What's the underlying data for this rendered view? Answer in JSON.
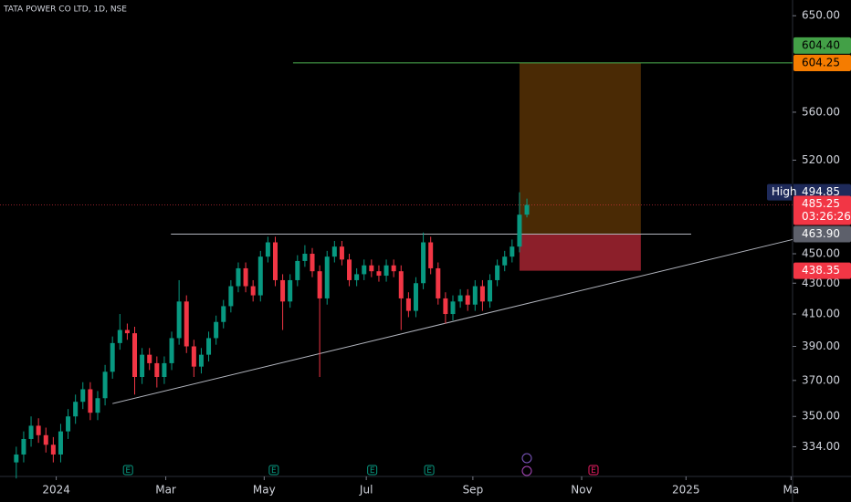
{
  "chart_data": {
    "type": "candlestick",
    "title": "TATA POWER CO LTD, 1D, NSE",
    "log_scale": true,
    "up_color": "#089981",
    "down_color": "#f23645",
    "series": {
      "open": [
        326,
        330,
        338,
        345,
        340,
        335,
        330,
        342,
        350,
        358,
        365,
        352,
        360,
        375,
        392,
        400,
        398,
        372,
        385,
        380,
        372,
        380,
        395,
        418,
        390,
        378,
        385,
        395,
        405,
        415,
        428,
        440,
        428,
        422,
        448,
        458,
        432,
        418,
        432,
        445,
        450,
        438,
        420,
        448,
        455,
        446,
        432,
        436,
        442,
        438,
        435,
        442,
        438,
        420,
        412,
        430,
        458,
        440,
        420,
        410,
        418,
        422,
        416,
        428,
        418,
        432,
        442,
        448,
        455,
        478
      ],
      "high": [
        334,
        342,
        350,
        349,
        344,
        339,
        346,
        354,
        362,
        369,
        369,
        364,
        379,
        396,
        410,
        404,
        402,
        389,
        389,
        384,
        384,
        399,
        432,
        422,
        394,
        389,
        399,
        409,
        419,
        432,
        444,
        444,
        432,
        452,
        462,
        462,
        436,
        436,
        449,
        456,
        454,
        442,
        452,
        459,
        459,
        450,
        440,
        446,
        446,
        442,
        446,
        446,
        442,
        424,
        434,
        465,
        462,
        444,
        424,
        422,
        426,
        426,
        432,
        432,
        436,
        446,
        452,
        460,
        494.85,
        490
      ],
      "low": [
        318,
        326,
        334,
        336,
        331,
        326,
        326,
        338,
        346,
        354,
        348,
        348,
        356,
        371,
        388,
        394,
        362,
        368,
        376,
        366,
        368,
        376,
        391,
        386,
        372,
        374,
        381,
        391,
        401,
        411,
        424,
        424,
        418,
        418,
        444,
        428,
        400,
        414,
        428,
        441,
        434,
        372,
        416,
        444,
        442,
        428,
        428,
        432,
        434,
        431,
        431,
        434,
        400,
        408,
        408,
        426,
        436,
        416,
        404,
        406,
        414,
        412,
        412,
        412,
        414,
        428,
        438,
        444,
        451,
        476
      ],
      "close": [
        330,
        338,
        345,
        340,
        335,
        330,
        342,
        350,
        358,
        365,
        352,
        360,
        375,
        392,
        400,
        398,
        372,
        385,
        380,
        372,
        380,
        395,
        418,
        390,
        378,
        385,
        395,
        405,
        415,
        428,
        440,
        428,
        422,
        448,
        458,
        432,
        418,
        432,
        445,
        450,
        438,
        420,
        448,
        455,
        446,
        432,
        436,
        442,
        438,
        435,
        442,
        438,
        420,
        412,
        430,
        458,
        440,
        420,
        410,
        418,
        422,
        416,
        428,
        418,
        432,
        442,
        448,
        455,
        478,
        485.25
      ]
    },
    "ylim": [
      319,
      666
    ],
    "yticks": [
      {
        "value": 334,
        "label": "334.00"
      },
      {
        "value": 350,
        "label": "350.00"
      },
      {
        "value": 370,
        "label": "370.00"
      },
      {
        "value": 390,
        "label": "390.00"
      },
      {
        "value": 410,
        "label": "410.00"
      },
      {
        "value": 430,
        "label": "430.00"
      },
      {
        "value": 450,
        "label": "450.00"
      },
      {
        "value": 520,
        "label": "520.00"
      },
      {
        "value": 560,
        "label": "560.00"
      },
      {
        "value": 650,
        "label": "650.00"
      }
    ],
    "xlim": [
      -2.2,
      104.9
    ],
    "xticks": [
      {
        "value": 5.4,
        "label": "2024"
      },
      {
        "value": 20.2,
        "label": "Mar"
      },
      {
        "value": 33.5,
        "label": "May"
      },
      {
        "value": 47.3,
        "label": "Jul"
      },
      {
        "value": 61.7,
        "label": "Sep"
      },
      {
        "value": 76.4,
        "label": "Nov"
      },
      {
        "value": 90.5,
        "label": "2025"
      },
      {
        "value": 104.7,
        "label": "Ma"
      }
    ],
    "horizontal_lines": [
      {
        "value": 604.4,
        "label": "604.40",
        "color": "#4caf50",
        "from": 37.4
      },
      {
        "value": 463.9,
        "label": "463.90",
        "color": "#b2b5be",
        "from": 20.9,
        "to": 91.2
      }
    ],
    "trend_line": {
      "points": [
        [
          13.0,
          357
        ],
        [
          104.9,
          460
        ]
      ],
      "color": "#b2b5be"
    },
    "position": {
      "from": 68.0,
      "to": 84.4,
      "entry": 463.9,
      "target": 604.25,
      "stop": 438.35,
      "target_label": "604.25",
      "stop_label": "438.35"
    },
    "high_marker": {
      "name": "High",
      "value": 494.85,
      "label": "494.85"
    },
    "last_price": {
      "value": 485.25,
      "label": "485.25",
      "countdown": "03:26:26"
    },
    "events": [
      {
        "x": 15.1,
        "label": "E",
        "color": "#089981"
      },
      {
        "x": 34.8,
        "label": "E",
        "color": "#089981"
      },
      {
        "x": 48.1,
        "label": "E",
        "color": "#089981"
      },
      {
        "x": 55.8,
        "label": "E",
        "color": "#089981"
      },
      {
        "x": 78.0,
        "label": "E",
        "color": "#e91e63"
      }
    ]
  }
}
